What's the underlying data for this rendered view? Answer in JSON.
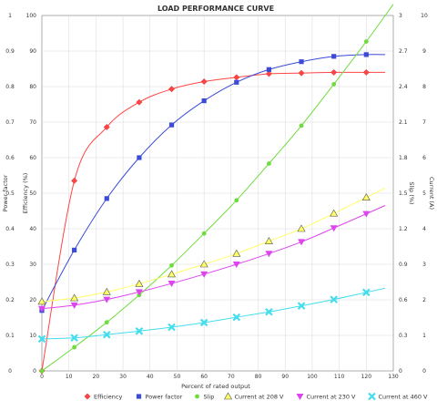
{
  "chart_data": {
    "type": "line",
    "title": "LOAD PERFORMANCE CURVE",
    "xlabel": "Percent of rated output",
    "x_ticks": [
      0,
      10,
      20,
      30,
      40,
      50,
      60,
      70,
      80,
      90,
      100,
      110,
      120,
      130
    ],
    "xlim": [
      0,
      130
    ],
    "axes": {
      "power_factor": {
        "label": "Power factor",
        "ticks": [
          "0",
          "0.1",
          "0.2",
          "0.3",
          "0.4",
          "0.5",
          "0.6",
          "0.7",
          "0.8",
          "0.9",
          "1"
        ],
        "range": [
          0,
          1
        ]
      },
      "efficiency": {
        "label": "Efficiency (%)",
        "ticks": [
          "0",
          "10",
          "20",
          "30",
          "40",
          "50",
          "60",
          "70",
          "80",
          "90",
          "100"
        ],
        "range": [
          0,
          100
        ]
      },
      "slip": {
        "label": "Slip (%)",
        "ticks": [
          "0",
          "0.3",
          "0.6",
          "0.9",
          "1.2",
          "1.5",
          "1.8",
          "2.1",
          "2.4",
          "2.7",
          "3"
        ],
        "range": [
          0,
          3
        ]
      },
      "current": {
        "label": "Current (A)",
        "ticks": [
          "0",
          "1",
          "2",
          "3",
          "4",
          "5",
          "6",
          "7",
          "8",
          "9",
          "10"
        ],
        "range": [
          0,
          10
        ]
      }
    },
    "series": [
      {
        "name": "Efficiency",
        "axis": "efficiency",
        "color": "#ff4444",
        "marker": "diamond",
        "x": [
          0,
          12,
          24,
          36,
          48,
          60,
          72,
          84,
          96,
          108,
          120
        ],
        "y": [
          0,
          53.5,
          68.6,
          75.6,
          79.3,
          81.4,
          82.6,
          83.6,
          83.8,
          84.0,
          84.0
        ]
      },
      {
        "name": "Power factor",
        "axis": "power_factor",
        "color": "#3b4bd6",
        "marker": "square",
        "x": [
          0,
          12,
          24,
          36,
          48,
          60,
          72,
          84,
          96,
          108,
          120
        ],
        "y": [
          0.17,
          0.34,
          0.485,
          0.6,
          0.692,
          0.76,
          0.812,
          0.848,
          0.87,
          0.885,
          0.89
        ]
      },
      {
        "name": "Slip",
        "axis": "slip",
        "color": "#6edc3c",
        "marker": "circle",
        "x": [
          0,
          12,
          24,
          36,
          48,
          60,
          72,
          84,
          96,
          108,
          120
        ],
        "y": [
          0.0,
          0.2,
          0.41,
          0.64,
          0.89,
          1.16,
          1.44,
          1.75,
          2.07,
          2.42,
          2.78
        ]
      },
      {
        "name": "Current at 208 V",
        "axis": "current",
        "color": "#ffff66",
        "marker": "triangle-up",
        "x": [
          0,
          12,
          24,
          36,
          48,
          60,
          72,
          84,
          96,
          108,
          120
        ],
        "y": [
          1.95,
          2.05,
          2.22,
          2.45,
          2.72,
          3.0,
          3.3,
          3.65,
          4.0,
          4.43,
          4.88
        ]
      },
      {
        "name": "Current at 230 V",
        "axis": "current",
        "color": "#dd44ee",
        "marker": "triangle-down",
        "x": [
          0,
          12,
          24,
          36,
          48,
          60,
          72,
          84,
          96,
          108,
          120
        ],
        "y": [
          1.75,
          1.85,
          2.01,
          2.22,
          2.46,
          2.72,
          3.0,
          3.3,
          3.63,
          4.02,
          4.42
        ]
      },
      {
        "name": "Current at 460 V",
        "axis": "current",
        "color": "#44ddee",
        "marker": "x",
        "x": [
          0,
          12,
          24,
          36,
          48,
          60,
          72,
          84,
          96,
          108,
          120
        ],
        "y": [
          0.9,
          0.93,
          1.02,
          1.12,
          1.23,
          1.36,
          1.51,
          1.66,
          1.83,
          2.01,
          2.21
        ]
      }
    ],
    "grid": true,
    "legend_position": "bottom"
  }
}
